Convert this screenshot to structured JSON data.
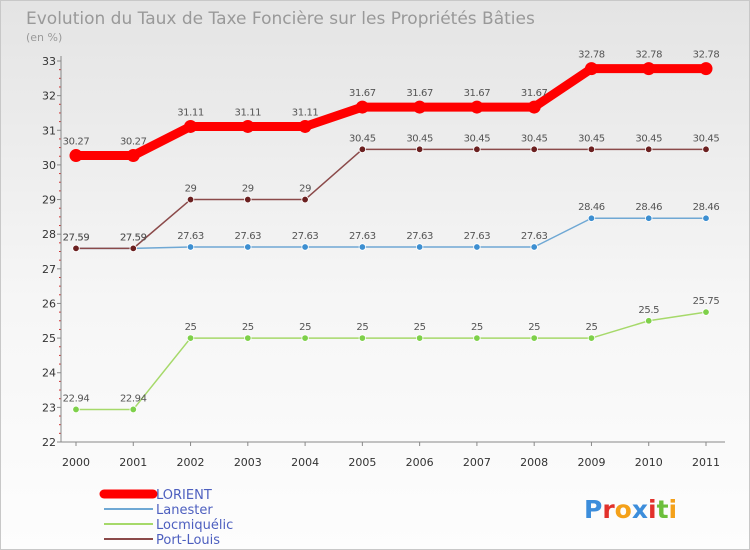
{
  "chart_data": {
    "type": "line",
    "title": "Evolution du Taux de Taxe Foncière sur les Propriétés Bâties",
    "subtitle": "(en %)",
    "xlabel": "",
    "ylabel": "",
    "categories": [
      "2000",
      "2001",
      "2002",
      "2003",
      "2004",
      "2005",
      "2006",
      "2007",
      "2008",
      "2009",
      "2010",
      "2011"
    ],
    "ylim": [
      22,
      33
    ],
    "yticks": [
      22,
      23,
      24,
      25,
      26,
      27,
      28,
      29,
      30,
      31,
      32,
      33
    ],
    "grid": false,
    "legend_position": "bottom-left",
    "series": [
      {
        "name": "LORIENT",
        "color": "#ff0000",
        "values": [
          30.27,
          30.27,
          31.11,
          31.11,
          31.11,
          31.67,
          31.67,
          31.67,
          31.67,
          32.78,
          32.78,
          32.78
        ],
        "labels": [
          "30.27",
          "30.27",
          "31.11",
          "31.11",
          "31.11",
          "31.67",
          "31.67",
          "31.67",
          "31.67",
          "32.78",
          "32.78",
          "32.78"
        ]
      },
      {
        "name": "Lanester",
        "color": "#6fa8d4",
        "marker_color": "#3d8fd1",
        "values": [
          27.59,
          27.59,
          27.63,
          27.63,
          27.63,
          27.63,
          27.63,
          27.63,
          27.63,
          28.46,
          28.46,
          28.46
        ],
        "labels": [
          "27.59",
          "27.59",
          "27.63",
          "27.63",
          "27.63",
          "27.63",
          "27.63",
          "27.63",
          "27.63",
          "28.46",
          "28.46",
          "28.46"
        ]
      },
      {
        "name": "Locmiquélic",
        "color": "#a6d96a",
        "marker_color": "#7ed04a",
        "values": [
          22.94,
          22.94,
          25,
          25,
          25,
          25,
          25,
          25,
          25,
          25,
          25.5,
          25.75
        ],
        "labels": [
          "22.94",
          "22.94",
          "25",
          "25",
          "25",
          "25",
          "25",
          "25",
          "25",
          "25",
          "25.5",
          "25.75"
        ]
      },
      {
        "name": "Port-Louis",
        "color": "#8b4a4a",
        "marker_color": "#6b2020",
        "values": [
          27.59,
          27.59,
          29,
          29,
          29,
          30.45,
          30.45,
          30.45,
          30.45,
          30.45,
          30.45,
          30.45
        ],
        "labels": [
          "27.59",
          "27.59",
          "29",
          "29",
          "29",
          "30.45",
          "30.45",
          "30.45",
          "30.45",
          "30.45",
          "30.45",
          "30.45"
        ]
      }
    ]
  },
  "logo": {
    "text": "Proxiti",
    "colors": [
      "#3c8ddb",
      "#e2312b",
      "#f4a11a",
      "#3c8ddb",
      "#e2312b",
      "#6cbf3c",
      "#f4a11a"
    ]
  }
}
